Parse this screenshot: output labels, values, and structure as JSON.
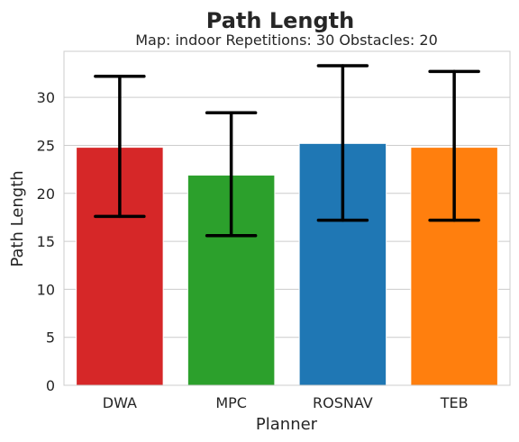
{
  "chart_data": {
    "type": "bar",
    "title": "Path Length",
    "subtitle": "Map: indoor Repetitions: 30 Obstacles: 20",
    "xlabel": "Planner",
    "ylabel": "Path Length",
    "categories": [
      "DWA",
      "MPC",
      "ROSNAV",
      "TEB"
    ],
    "values": [
      24.8,
      21.9,
      25.2,
      24.8
    ],
    "error_low": [
      17.6,
      15.6,
      17.2,
      17.2
    ],
    "error_high": [
      32.2,
      28.4,
      33.3,
      32.7
    ],
    "colors": [
      "#d62728",
      "#2ca02c",
      "#1f77b4",
      "#ff7f0e"
    ],
    "ylim": [
      0,
      34.8
    ],
    "yticks": [
      0,
      5,
      10,
      15,
      20,
      25,
      30
    ],
    "grid": "horizontal",
    "legend": "none"
  }
}
